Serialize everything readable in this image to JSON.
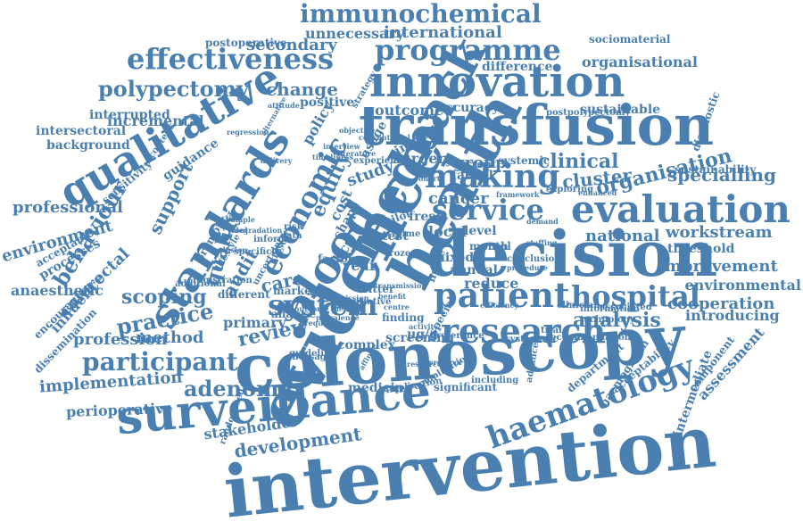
{
  "color": "#4a7fb0",
  "words": [
    "intervention",
    "colonoscopy",
    "decision",
    "transfusion",
    "innovation",
    "evidence",
    "health",
    "blood",
    "feedback",
    "surveillance",
    "evaluation",
    "patient",
    "standards",
    "qualitative",
    "effectiveness",
    "economic",
    "research",
    "service",
    "hospital",
    "participant",
    "programme",
    "making",
    "haematology",
    "immunochemical",
    "equity",
    "system",
    "review",
    "development",
    "adenoma",
    "implementation",
    "care",
    "analysis",
    "practice",
    "scoping",
    "behaviour",
    "organisation",
    "polypectomy",
    "clinical",
    "specialling",
    "cluster",
    "improvement",
    "environment",
    "national",
    "workstream",
    "cooperation",
    "environmental",
    "introducing",
    "assessment",
    "professional",
    "support",
    "quality",
    "audit",
    "method",
    "profession",
    "perioperative",
    "stakeholder",
    "change",
    "international",
    "secondary",
    "outcome",
    "accuracy",
    "sustainable",
    "organisational",
    "difference",
    "incremental",
    "interrupted",
    "intersectoral",
    "background",
    "guidance",
    "sensitivity",
    "processes",
    "anaesthetic",
    "colorectal",
    "influence",
    "primary",
    "cancer",
    "group",
    "faecal",
    "local",
    "level",
    "reduce",
    "annual",
    "study",
    "cost",
    "policy",
    "threshold",
    "unnecessary",
    "postoperative",
    "sociomaterial",
    "positive",
    "different",
    "marker",
    "screening",
    "complex",
    "medicine",
    "acceptability",
    "intermediate",
    "component",
    "diagnostic",
    "sustainability",
    "postpolypectomy",
    "year",
    "surgery",
    "mixed",
    "stool",
    "month",
    "factor",
    "analyse",
    "significant",
    "information",
    "technology",
    "associated",
    "clinician",
    "department",
    "haemoglobin",
    "randomised",
    "dissemination",
    "encouraging",
    "acceptable",
    "registration",
    "additional",
    "promote",
    "lifestyle",
    "specificity",
    "uncertainty",
    "exploring",
    "enhanced",
    "systemic",
    "current",
    "impact",
    "fresh",
    "pilot",
    "test",
    "time",
    "frozen",
    "finding",
    "special",
    "µg/g",
    "sitter",
    "nurse",
    "shape",
    "result",
    "data",
    "rbcs",
    "risk",
    "aged",
    "inform",
    "usage",
    "content",
    "trial",
    "systematic",
    "recommendation",
    "preference",
    "including",
    "advanced",
    "complication",
    "implication",
    "guideline",
    "message",
    "strategy",
    "experience",
    "framework",
    "conclusion",
    "procedure",
    "efficiency",
    "affinite",
    "activity",
    "benefit",
    "initiative",
    "centre",
    "sample",
    "tool",
    "outcome measure",
    "delivery",
    "alternative",
    "attitude",
    "regression",
    "interview",
    "literature",
    "objective",
    "degradation",
    "inclusion",
    "selection",
    "timeliness",
    "prevalence",
    "admission",
    "conventional",
    "frequency",
    "cohort",
    "transmission",
    "demand",
    "staffing",
    "resource",
    "protocol",
    "unit",
    "rate",
    "setting",
    "range"
  ]
}
